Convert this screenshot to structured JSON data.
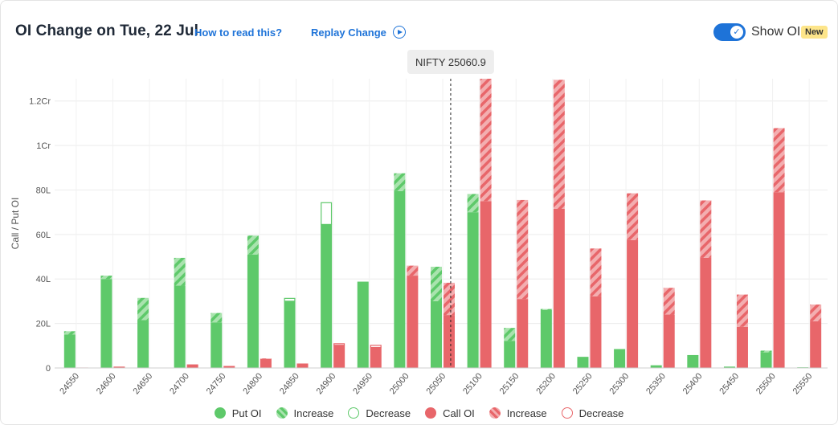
{
  "header": {
    "title": "OI Change on Tue, 22 Jul",
    "how_to_read": "How to read this?",
    "replay": "Replay Change",
    "toggle_label": "Show OI",
    "badge": "New"
  },
  "colors": {
    "put": "#5ec96a",
    "put_light": "#a9e3ae",
    "call": "#e8666a",
    "call_light": "#f3aeb0",
    "accent": "#1e73d8"
  },
  "chart_data": {
    "type": "bar",
    "ylabel": "Call / Put OI",
    "ylim": [
      0,
      13000000
    ],
    "yticks": [
      {
        "value": 0,
        "label": "0"
      },
      {
        "value": 2000000,
        "label": "20L"
      },
      {
        "value": 4000000,
        "label": "40L"
      },
      {
        "value": 6000000,
        "label": "60L"
      },
      {
        "value": 8000000,
        "label": "80L"
      },
      {
        "value": 10000000,
        "label": "1Cr"
      },
      {
        "value": 12000000,
        "label": "1.2Cr"
      }
    ],
    "categories": [
      "24550",
      "24600",
      "24650",
      "24700",
      "24750",
      "24800",
      "24850",
      "24900",
      "24950",
      "25000",
      "25050",
      "25100",
      "25150",
      "25200",
      "25250",
      "25300",
      "25350",
      "25400",
      "25450",
      "25500",
      "25550"
    ],
    "spot": {
      "label": "NIFTY 25060.9",
      "value": 25060.9
    },
    "series": [
      {
        "name": "Put OI",
        "values": [
          1500000,
          4000000,
          2150000,
          3700000,
          2050000,
          5100000,
          3000000,
          6450000,
          3880000,
          7950000,
          3000000,
          7000000,
          1220000,
          2600000,
          500000,
          850000,
          120000,
          580000,
          60000,
          700000,
          30000
        ]
      },
      {
        "name": "Increase",
        "values": [
          150000,
          150000,
          1000000,
          1250000,
          420000,
          850000,
          0,
          0,
          0,
          800000,
          1550000,
          820000,
          580000,
          50000,
          0,
          0,
          0,
          0,
          0,
          80000,
          0
        ]
      },
      {
        "name": "Decrease",
        "values": [
          0,
          0,
          0,
          0,
          0,
          0,
          150000,
          1000000,
          0,
          0,
          0,
          0,
          0,
          0,
          0,
          0,
          0,
          0,
          0,
          0,
          0
        ]
      },
      {
        "name": "Call OI",
        "values": [
          20000,
          60000,
          0,
          160000,
          90000,
          400000,
          200000,
          1020000,
          920000,
          4150000,
          2380000,
          7500000,
          3100000,
          7150000,
          3220000,
          5750000,
          2400000,
          4950000,
          1850000,
          7900000,
          2100000
        ]
      },
      {
        "name": "Increase",
        "values": [
          0,
          0,
          0,
          0,
          0,
          30000,
          0,
          0,
          0,
          450000,
          1450000,
          5500000,
          4450000,
          5800000,
          2150000,
          2100000,
          1200000,
          2580000,
          1450000,
          2880000,
          750000
        ]
      },
      {
        "name": "Decrease",
        "values": [
          0,
          0,
          0,
          0,
          0,
          0,
          0,
          90000,
          120000,
          0,
          0,
          0,
          0,
          0,
          0,
          0,
          0,
          0,
          0,
          0,
          0
        ]
      }
    ],
    "legend": [
      "Put OI",
      "Increase",
      "Decrease",
      "Call OI",
      "Increase",
      "Decrease"
    ],
    "grid": true
  }
}
